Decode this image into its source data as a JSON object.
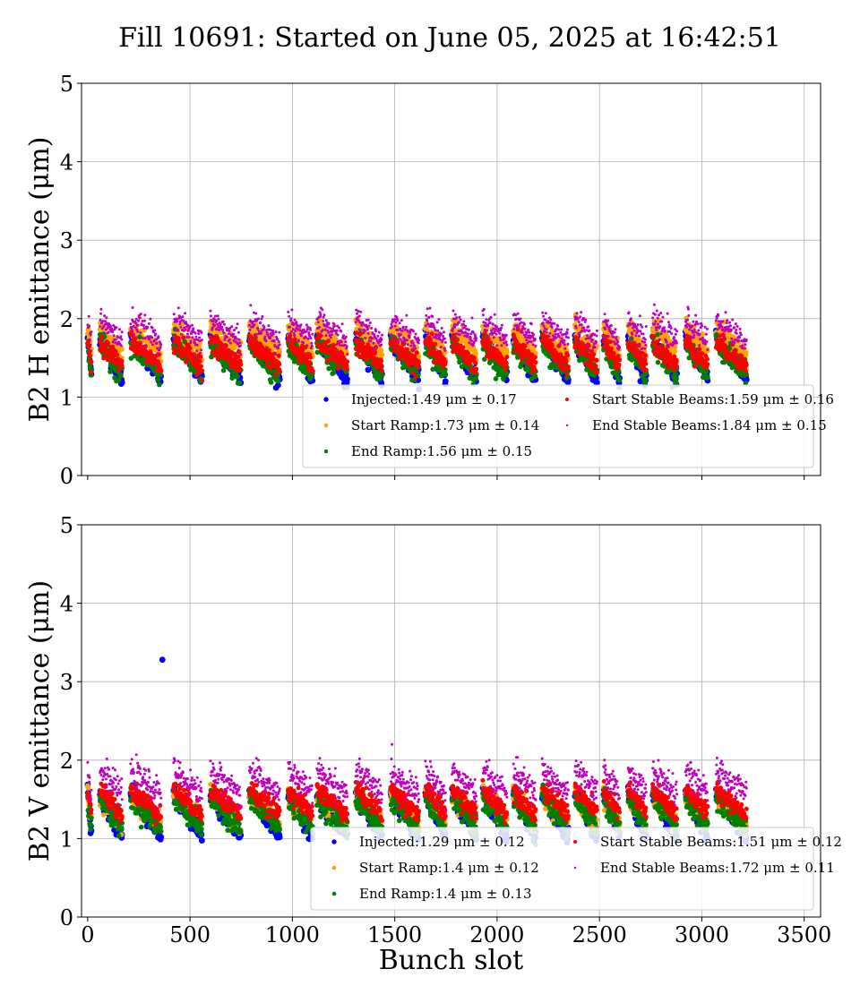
{
  "figure_title": "Fill 10691: Started on June 05, 2025 at 16:42:51",
  "chart_data": [
    {
      "type": "scatter",
      "ylabel": "B2 H emittance (μm)",
      "xlabel": "",
      "xlim": [
        -30,
        3580
      ],
      "ylim": [
        0,
        5
      ],
      "xticks": [
        0,
        500,
        1000,
        1500,
        2000,
        2500,
        3000,
        3500
      ],
      "yticks": [
        0,
        1,
        2,
        3,
        4,
        5
      ],
      "grid": true,
      "legend_position": "lower-right",
      "series": [
        {
          "name": "Injected",
          "legend": "Injected:1.49 μm ± 0.17",
          "mean": 1.49,
          "std": 0.17,
          "color": "#0000ff"
        },
        {
          "name": "Start Ramp",
          "legend": "Start Ramp:1.73 μm ± 0.14",
          "mean": 1.73,
          "std": 0.14,
          "color": "#ffa500"
        },
        {
          "name": "End Ramp",
          "legend": "End Ramp:1.56 μm ± 0.15",
          "mean": 1.56,
          "std": 0.15,
          "color": "#008000"
        },
        {
          "name": "Start Stable Beams",
          "legend": "Start Stable Beams:1.59 μm ± 0.16",
          "mean": 1.59,
          "std": 0.16,
          "color": "#ff0000"
        },
        {
          "name": "End Stable Beams",
          "legend": "End Stable Beams:1.84 μm ± 0.15",
          "mean": 1.84,
          "std": 0.15,
          "color": "#bf00bf"
        }
      ]
    },
    {
      "type": "scatter",
      "ylabel": "B2 V emittance (μm)",
      "xlabel": "Bunch slot",
      "xlim": [
        -30,
        3580
      ],
      "ylim": [
        0,
        5
      ],
      "xticks": [
        0,
        500,
        1000,
        1500,
        2000,
        2500,
        3000,
        3500
      ],
      "yticks": [
        0,
        1,
        2,
        3,
        4,
        5
      ],
      "grid": true,
      "legend_position": "lower-right",
      "outlier": {
        "series": "Injected",
        "x": 365,
        "y": 3.28
      },
      "series": [
        {
          "name": "Injected",
          "legend": "Injected:1.29 μm ± 0.12",
          "mean": 1.29,
          "std": 0.12,
          "color": "#0000ff"
        },
        {
          "name": "Start Ramp",
          "legend": "Start Ramp:1.4 μm ± 0.12",
          "mean": 1.4,
          "std": 0.12,
          "color": "#ffa500"
        },
        {
          "name": "End Ramp",
          "legend": "End Ramp:1.4 μm ± 0.13",
          "mean": 1.4,
          "std": 0.13,
          "color": "#008000"
        },
        {
          "name": "Start Stable Beams",
          "legend": "Start Stable Beams:1.51 μm ± 0.12",
          "mean": 1.51,
          "std": 0.12,
          "color": "#ff0000"
        },
        {
          "name": "End Stable Beams",
          "legend": "End Stable Beams:1.72 μm ± 0.11",
          "mean": 1.72,
          "std": 0.11,
          "color": "#bf00bf"
        }
      ]
    }
  ]
}
